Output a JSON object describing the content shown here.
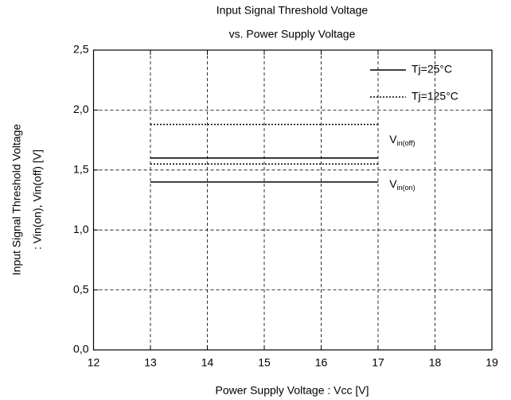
{
  "chart_data": {
    "type": "line",
    "title": [
      "Input Signal Threshold Voltage",
      "vs. Power Supply Voltage"
    ],
    "x_label": "Power Supply Voltage : Vcc [V]",
    "y_label": [
      "Input Signal Threshold Voltage",
      ": Vin(on), Vin(off) [V]"
    ],
    "xlim": [
      12,
      19
    ],
    "xticks": [
      12,
      13,
      14,
      15,
      16,
      17,
      18,
      19
    ],
    "ylim": [
      0,
      2.5
    ],
    "yticks": [
      {
        "value": 0,
        "label": "0,0"
      },
      {
        "value": 0.5,
        "label": "0,5"
      },
      {
        "value": 1,
        "label": "1,0"
      },
      {
        "value": 1.5,
        "label": "1,5"
      },
      {
        "value": 2,
        "label": "2,0"
      },
      {
        "value": 2.5,
        "label": "2,5"
      }
    ],
    "grid": true,
    "legend": "upper right",
    "series": [
      {
        "name": "Tj=25°C",
        "color": "#000000",
        "style": "solid",
        "lines": [
          {
            "x": [
              13,
              17
            ],
            "values": [
              1.6,
              1.6
            ]
          },
          {
            "x": [
              13,
              17
            ],
            "values": [
              1.4,
              1.4
            ]
          }
        ]
      },
      {
        "name": "Tj=125°C",
        "color": "#000000",
        "style": "dotted",
        "lines": [
          {
            "x": [
              13,
              17
            ],
            "values": [
              1.88,
              1.88
            ]
          },
          {
            "x": [
              13,
              17
            ],
            "values": [
              1.55,
              1.55
            ]
          }
        ]
      }
    ],
    "annotations": [
      {
        "text": "V",
        "sub": "in(off)",
        "x": 17.2,
        "y": 1.75
      },
      {
        "text": "V",
        "sub": "in(on)",
        "x": 17.2,
        "y": 1.38
      }
    ]
  }
}
